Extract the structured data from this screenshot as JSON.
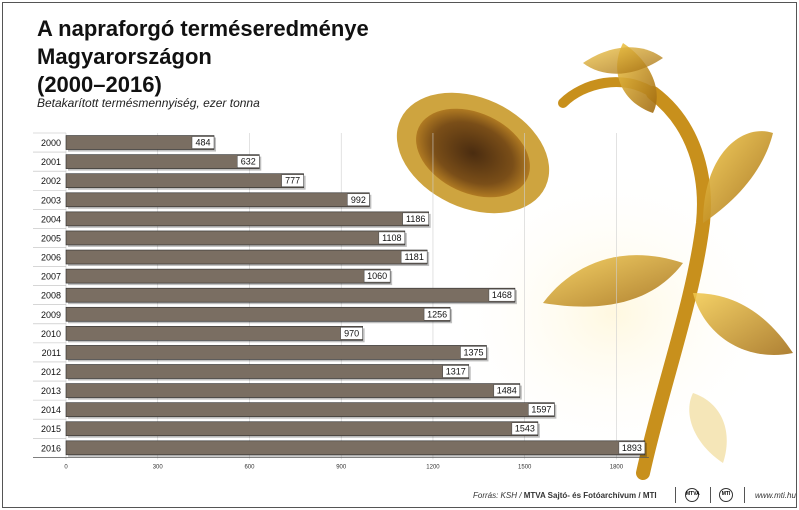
{
  "title_line1": "A napraforgó terméseredménye Magyarországon",
  "title_line2": "(2000–2016)",
  "subtitle": "Betakarított termésmennyiség, ezer tonna",
  "source_prefix": "Forrás: KSH / ",
  "source_bold": "MTVA Sajtó- és Fotóarchívum / MTI",
  "site": "www.mti.hu",
  "logo1": "MTVA",
  "logo2": "MTI",
  "colors": {
    "bar": "#7a6e62",
    "bar_border": "#2b2b2b",
    "accent": "#d9a21c"
  },
  "chart_data": {
    "type": "bar",
    "orientation": "horizontal",
    "categories": [
      "2000",
      "2001",
      "2002",
      "2003",
      "2004",
      "2005",
      "2006",
      "2007",
      "2008",
      "2009",
      "2010",
      "2011",
      "2012",
      "2013",
      "2014",
      "2015",
      "2016"
    ],
    "values": [
      484,
      632,
      777,
      992,
      1186,
      1108,
      1181,
      1060,
      1468,
      1256,
      970,
      1375,
      1317,
      1484,
      1597,
      1543,
      1893
    ],
    "title": "A napraforgó terméseredménye Magyarországon (2000–2016)",
    "subtitle": "Betakarított termésmennyiség, ezer tonna",
    "xticks": [
      0,
      300,
      600,
      900,
      1200,
      1500,
      1800
    ],
    "xlim": [
      0,
      1893
    ],
    "grid": true
  }
}
